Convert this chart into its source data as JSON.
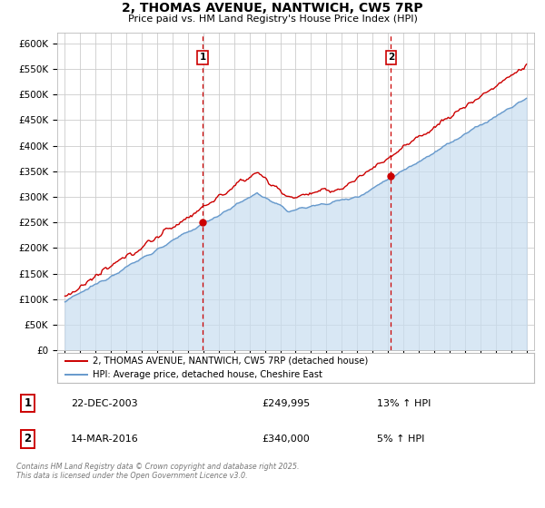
{
  "title": "2, THOMAS AVENUE, NANTWICH, CW5 7RP",
  "subtitle": "Price paid vs. HM Land Registry's House Price Index (HPI)",
  "legend_label_red": "2, THOMAS AVENUE, NANTWICH, CW5 7RP (detached house)",
  "legend_label_blue": "HPI: Average price, detached house, Cheshire East",
  "red_color": "#cc0000",
  "blue_color": "#6699cc",
  "blue_fill_color": "#c8ddf0",
  "background_color": "#ffffff",
  "grid_color": "#cccccc",
  "sale1_x": 2003.97,
  "sale1_y": 249995,
  "sale2_x": 2016.2,
  "sale2_y": 340000,
  "annotation1_date": "22-DEC-2003",
  "annotation1_price": "£249,995",
  "annotation1_hpi": "13% ↑ HPI",
  "annotation2_date": "14-MAR-2016",
  "annotation2_price": "£340,000",
  "annotation2_hpi": "5% ↑ HPI",
  "footer": "Contains HM Land Registry data © Crown copyright and database right 2025.\nThis data is licensed under the Open Government Licence v3.0.",
  "ylim": [
    0,
    620000
  ],
  "xlim": [
    1994.5,
    2025.5
  ],
  "yticks": [
    0,
    50000,
    100000,
    150000,
    200000,
    250000,
    300000,
    350000,
    400000,
    450000,
    500000,
    550000,
    600000
  ]
}
